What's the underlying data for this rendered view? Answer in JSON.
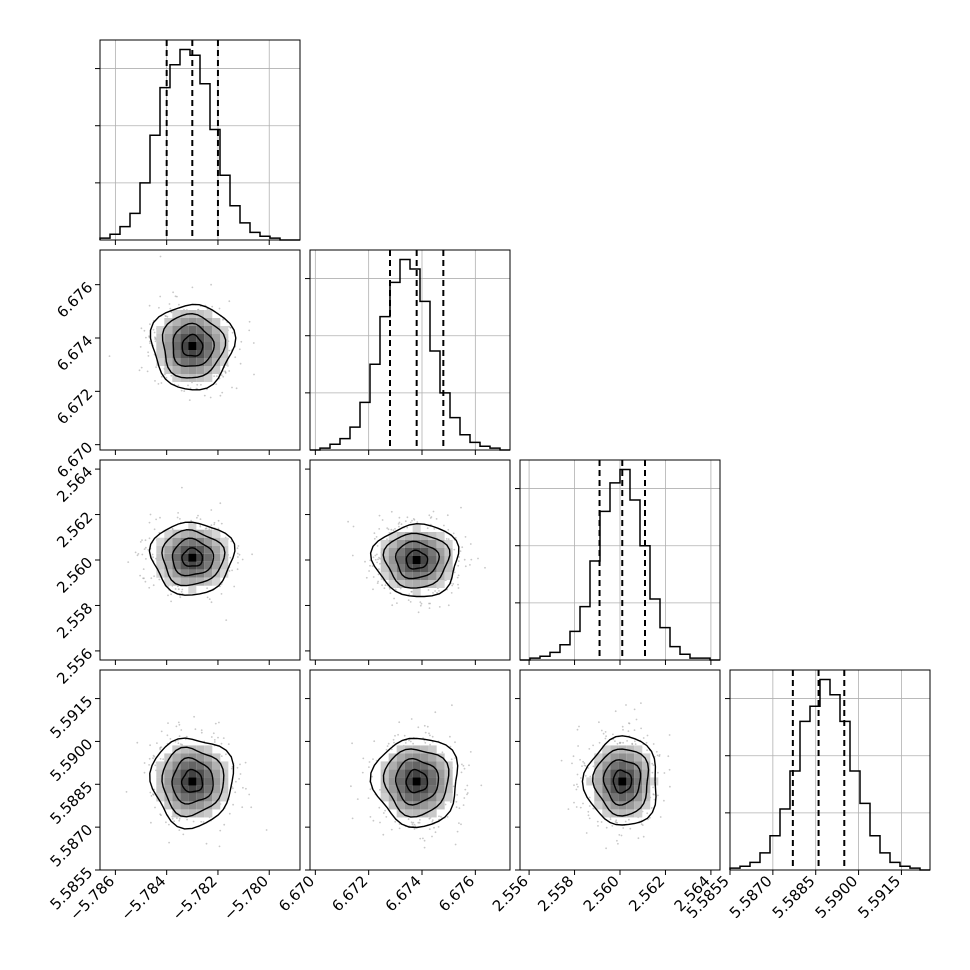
{
  "chart_data": {
    "type": "corner",
    "parameters": [
      {
        "index": 0,
        "ticks": [
          -5.786,
          -5.784,
          -5.782,
          -5.78
        ],
        "tick_labels": [
          "−5.786",
          "−5.784",
          "−5.782",
          "−5.780"
        ],
        "range": [
          -5.7866,
          -5.7788
        ],
        "median": -5.783,
        "q16": -5.784,
        "q84": -5.782
      },
      {
        "index": 1,
        "ticks": [
          6.67,
          6.672,
          6.674,
          6.676
        ],
        "tick_labels": [
          "6.670",
          "6.672",
          "6.674",
          "6.676"
        ],
        "range": [
          6.6698,
          6.6773
        ],
        "median": 6.6738,
        "q16": 6.6728,
        "q84": 6.6748
      },
      {
        "index": 2,
        "ticks": [
          2.556,
          2.558,
          2.56,
          2.562,
          2.564
        ],
        "tick_labels": [
          "2.556",
          "2.558",
          "2.560",
          "2.562",
          "2.564"
        ],
        "range": [
          2.5556,
          2.5644
        ],
        "median": 2.5601,
        "q16": 2.5591,
        "q84": 2.5611
      },
      {
        "index": 3,
        "ticks": [
          5.5855,
          5.587,
          5.5885,
          5.59,
          5.5915
        ],
        "tick_labels": [
          "5.5855",
          "5.5870",
          "5.5885",
          "5.5900",
          "5.5915"
        ],
        "range": [
          5.5855,
          5.5925
        ],
        "median": 5.5886,
        "q16": 5.5877,
        "q84": 5.5895
      }
    ],
    "histograms": [
      {
        "param": 0,
        "edges": [
          -5.7866,
          -5.7788
        ],
        "counts": [
          1,
          3,
          7,
          14,
          30,
          55,
          80,
          92,
          100,
          97,
          82,
          58,
          34,
          18,
          9,
          4,
          2,
          1,
          0,
          0
        ]
      },
      {
        "param": 1,
        "edges": [
          6.6698,
          6.6773
        ],
        "counts": [
          0,
          1,
          3,
          6,
          12,
          25,
          45,
          70,
          88,
          100,
          95,
          78,
          52,
          30,
          17,
          8,
          4,
          2,
          1,
          0
        ]
      },
      {
        "param": 2,
        "edges": [
          2.5556,
          2.5644
        ],
        "counts": [
          0,
          1,
          2,
          4,
          8,
          15,
          28,
          52,
          78,
          93,
          100,
          84,
          60,
          32,
          17,
          7,
          3,
          1,
          1,
          0
        ]
      },
      {
        "param": 3,
        "edges": [
          5.5855,
          5.5925
        ],
        "counts": [
          1,
          2,
          4,
          9,
          18,
          32,
          52,
          78,
          86,
          100,
          92,
          78,
          52,
          35,
          18,
          9,
          4,
          2,
          1,
          0
        ]
      }
    ],
    "densities": [
      {
        "x": 0,
        "y": 1,
        "center": [
          -5.783,
          6.6737
        ],
        "sigma": [
          0.0008,
          0.0008
        ]
      },
      {
        "x": 0,
        "y": 2,
        "center": [
          -5.783,
          2.5601
        ],
        "sigma": [
          0.0008,
          0.0008
        ]
      },
      {
        "x": 1,
        "y": 2,
        "center": [
          6.6738,
          2.56
        ],
        "sigma": [
          0.0008,
          0.0008
        ]
      },
      {
        "x": 0,
        "y": 3,
        "center": [
          -5.783,
          5.5886
        ],
        "sigma": [
          0.0008,
          0.00078
        ]
      },
      {
        "x": 1,
        "y": 3,
        "center": [
          6.6738,
          5.5886
        ],
        "sigma": [
          0.0008,
          0.00078
        ]
      },
      {
        "x": 2,
        "y": 3,
        "center": [
          2.5601,
          5.5886
        ],
        "sigma": [
          0.0008,
          0.00078
        ]
      }
    ],
    "contour_levels_sigma": [
      0.5,
      1.0,
      1.5,
      2.0
    ],
    "quantile_lines": "dashed",
    "grid": true,
    "colors": {
      "hist": "#000000",
      "contour": "#000000",
      "points": "#9a9a9a",
      "grid": "#b0b0b0"
    }
  }
}
